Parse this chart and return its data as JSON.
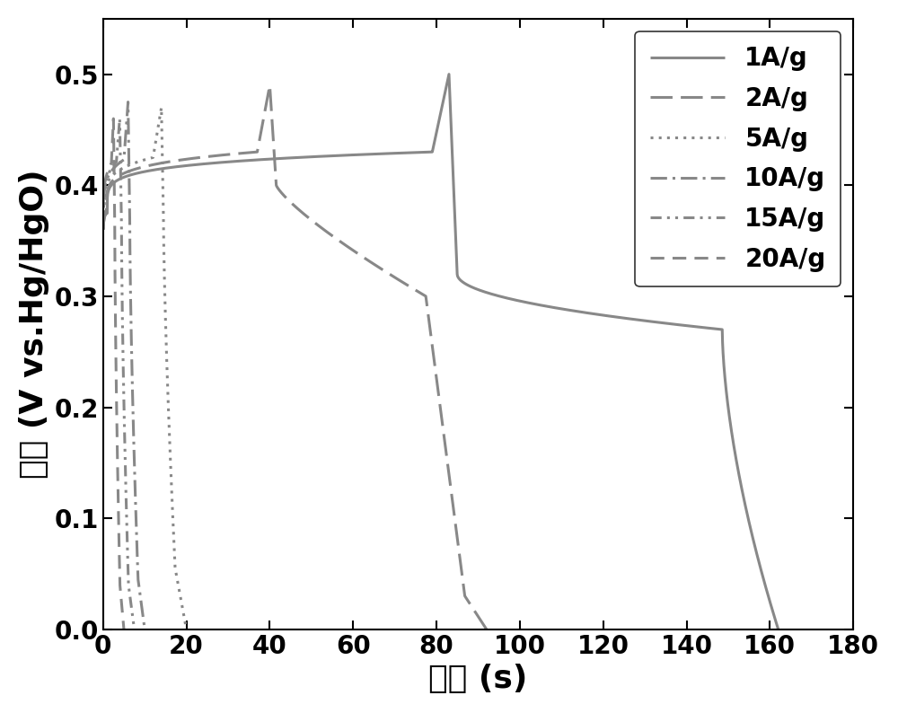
{
  "xlabel": "时间 (s)",
  "ylabel": "电压 (V vs.Hg/HgO)",
  "xlim": [
    0,
    180
  ],
  "ylim": [
    0.0,
    0.55
  ],
  "xticks": [
    0,
    20,
    40,
    60,
    80,
    100,
    120,
    140,
    160,
    180
  ],
  "yticks": [
    0.0,
    0.1,
    0.2,
    0.3,
    0.4,
    0.5
  ],
  "line_color": "#888888",
  "background": "#ffffff",
  "legend_labels": [
    "1A/g",
    "2A/g",
    "5A/g",
    "10A/g",
    "15A/g",
    "20A/g"
  ]
}
